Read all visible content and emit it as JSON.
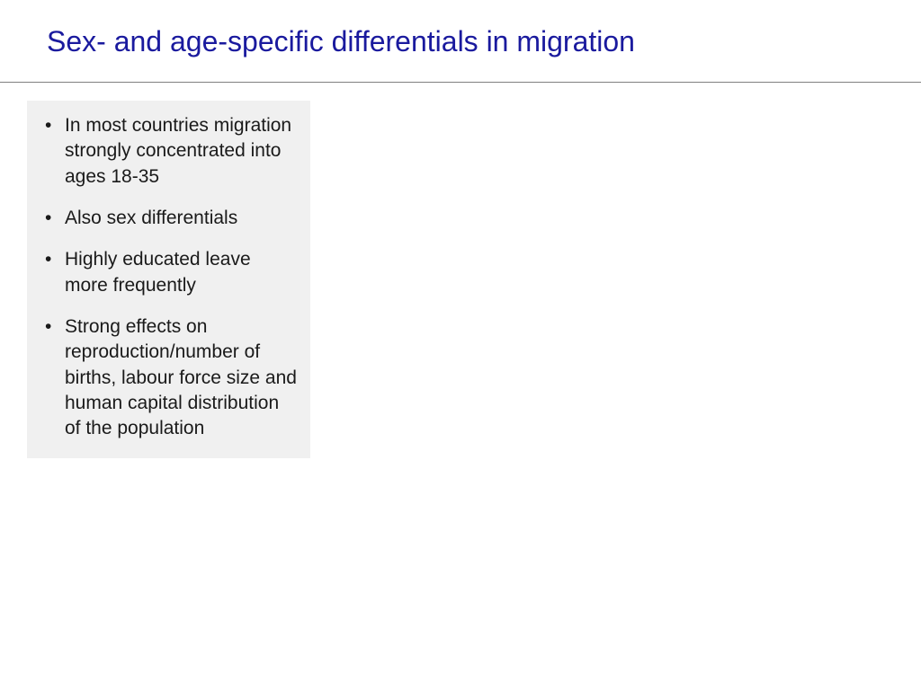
{
  "slide": {
    "title": "Sex- and age-specific differentials in migration",
    "title_color": "#1a1a9e",
    "title_fontsize": 32,
    "divider_color": "#808080",
    "content_box": {
      "background_color": "#f0f0f0",
      "text_color": "#1a1a1a",
      "fontsize": 21,
      "bullets": [
        "In most countries migration strongly concentrated into ages 18-35",
        "Also sex differentials",
        "Highly educated leave more frequently",
        "Strong effects on reproduction/number of births, labour force size and human capital distribution of the population"
      ]
    }
  }
}
